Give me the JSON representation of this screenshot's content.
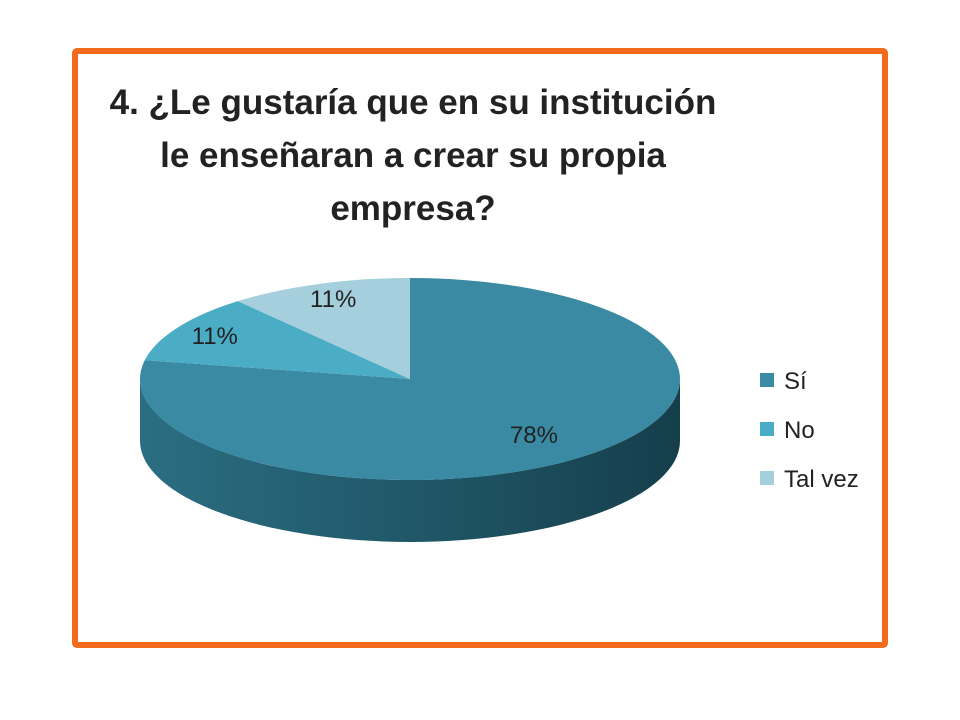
{
  "chart_data": {
    "type": "pie",
    "title_lines": [
      "4. ¿Le gustaría que en su institución",
      "le enseñaran a crear su propia",
      "empresa?"
    ],
    "categories": [
      "Sí",
      "No",
      "Tal vez"
    ],
    "values": [
      78,
      11,
      11
    ],
    "labels": [
      "78%",
      "11%",
      "11%"
    ],
    "colors": [
      "#3a8aa3",
      "#4bacc6",
      "#a5cfdc"
    ],
    "legend_position": "right",
    "style": "3d"
  },
  "frame_color": "#f26b1d"
}
